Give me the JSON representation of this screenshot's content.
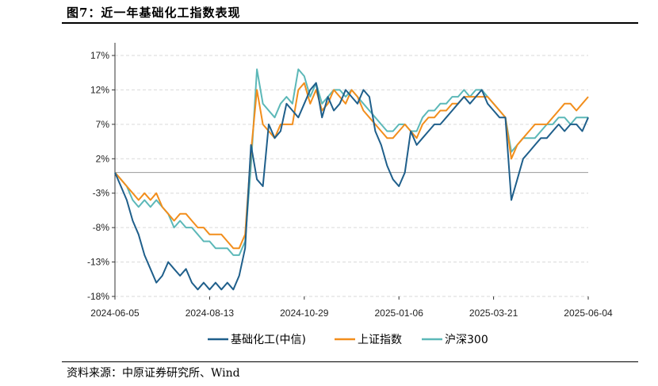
{
  "header": {
    "title": "图7：近一年基础化工指数表现"
  },
  "footer": {
    "source": "资料来源：中原证券研究所、Wind"
  },
  "chart_data": {
    "type": "line",
    "title": "近一年基础化工指数表现",
    "xlabel": "",
    "ylabel": "",
    "ylim": [
      -18,
      17
    ],
    "yticks": [
      17,
      12,
      7,
      2,
      -3,
      -8,
      -13,
      -18
    ],
    "ytick_labels": [
      "17%",
      "12%",
      "7%",
      "2%",
      "-3%",
      "-8%",
      "-13%",
      "-18%"
    ],
    "x_tick_labels": [
      "2024-06-05",
      "2024-08-13",
      "2024-10-29",
      "2025-01-06",
      "2025-03-21",
      "2025-06-04"
    ],
    "x_tick_index": [
      0,
      16,
      32,
      48,
      64,
      80
    ],
    "grid": "horizontal-dashed",
    "legend_position": "bottom",
    "series": [
      {
        "name": "基础化工(中信)",
        "color": "#1f5f8b",
        "values": [
          0,
          -2,
          -4,
          -7,
          -9,
          -12,
          -14,
          -16,
          -15,
          -13,
          -14,
          -15,
          -14,
          -16,
          -17,
          -16,
          -17,
          -16,
          -17,
          -16,
          -17,
          -15,
          -11,
          4,
          -1,
          -2,
          7,
          5,
          6,
          10,
          9,
          8,
          10,
          12,
          13,
          8,
          11,
          9,
          10,
          12,
          11,
          10,
          12,
          11,
          6,
          4,
          1,
          -1,
          -2,
          0,
          6,
          4,
          5,
          6,
          7,
          7,
          8,
          9,
          10,
          11,
          10,
          11,
          12,
          10,
          9,
          8,
          8,
          -4,
          -1,
          2,
          3,
          4,
          5,
          5,
          6,
          7,
          6,
          7,
          7,
          6,
          8
        ]
      },
      {
        "name": "上证指数",
        "color": "#f28e1c",
        "values": [
          0,
          -1,
          -2,
          -3,
          -4,
          -3,
          -4,
          -3,
          -5,
          -6,
          -7,
          -6,
          -6,
          -7,
          -8,
          -8,
          -9,
          -9,
          -9,
          -10,
          -11,
          -11,
          -9,
          3,
          12,
          7,
          6,
          5,
          7,
          7,
          7,
          12,
          13,
          10,
          12,
          9,
          10,
          12,
          11,
          10,
          12,
          11,
          9,
          8,
          7,
          6,
          5,
          5,
          6,
          7,
          6,
          5,
          7,
          8,
          8,
          9,
          9,
          10,
          10,
          11,
          11,
          11,
          11,
          11,
          10,
          9,
          8,
          2,
          4,
          5,
          6,
          7,
          7,
          7,
          8,
          9,
          10,
          10,
          9,
          10,
          11
        ]
      },
      {
        "name": "沪深300",
        "color": "#5cb8b8",
        "values": [
          0,
          -1,
          -2,
          -4,
          -5,
          -4,
          -5,
          -4,
          -5,
          -6,
          -8,
          -7,
          -8,
          -8,
          -9,
          -10,
          -10,
          -11,
          -11,
          -11,
          -12,
          -12,
          -10,
          1,
          15,
          10,
          9,
          8,
          10,
          11,
          10,
          15,
          14,
          11,
          13,
          10,
          11,
          12,
          12,
          11,
          12,
          11,
          10,
          9,
          8,
          7,
          6,
          6,
          7,
          7,
          6,
          6,
          8,
          9,
          9,
          10,
          10,
          11,
          11,
          12,
          11,
          12,
          12,
          11,
          10,
          9,
          8,
          3,
          4,
          5,
          5,
          5,
          6,
          7,
          7,
          8,
          8,
          7,
          8,
          8,
          8
        ]
      }
    ]
  }
}
